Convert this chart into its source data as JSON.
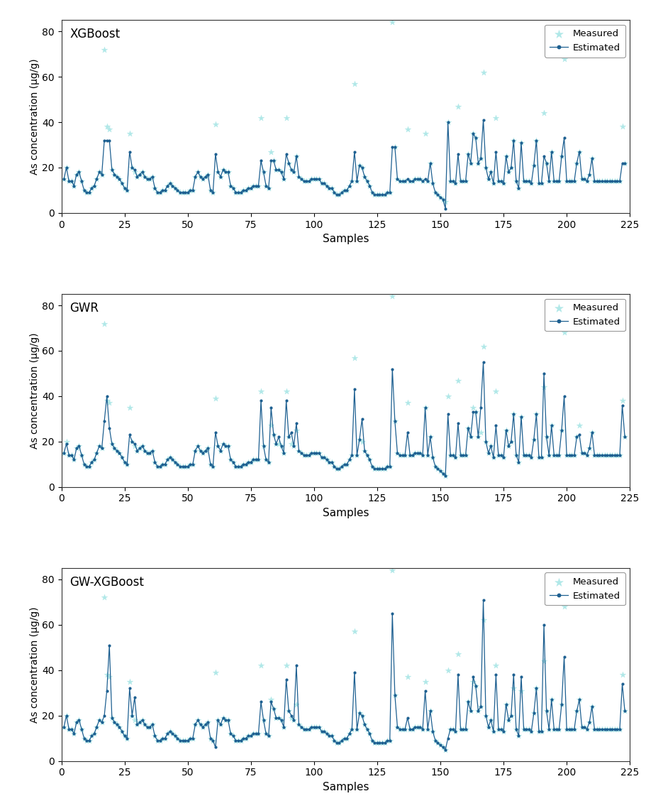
{
  "titles": [
    "XGBoost",
    "GWR",
    "GW-XGBoost"
  ],
  "xlabel": "Samples",
  "ylabel": "As concentration (μg/g)",
  "ylim": [
    0,
    85
  ],
  "xlim": [
    0,
    225
  ],
  "yticks": [
    0,
    20,
    40,
    60,
    80
  ],
  "xticks": [
    0,
    25,
    50,
    75,
    100,
    125,
    150,
    175,
    200,
    225
  ],
  "measured_color": "#b0e8e8",
  "estimated_color": "#1e6091",
  "measured_label": "Measured",
  "estimated_label": "Estimated",
  "measured": [
    15,
    20,
    14,
    14,
    12,
    17,
    18,
    14,
    10,
    9,
    9,
    11,
    12,
    15,
    18,
    17,
    72,
    38,
    37,
    19,
    17,
    16,
    15,
    13,
    11,
    10,
    35,
    20,
    18,
    16,
    17,
    18,
    16,
    15,
    15,
    16,
    11,
    9,
    9,
    10,
    10,
    12,
    13,
    12,
    11,
    10,
    9,
    9,
    9,
    9,
    10,
    10,
    16,
    18,
    16,
    15,
    16,
    17,
    10,
    9,
    39,
    18,
    16,
    19,
    18,
    18,
    12,
    11,
    9,
    9,
    9,
    10,
    10,
    11,
    11,
    12,
    12,
    12,
    42,
    18,
    12,
    11,
    27,
    23,
    19,
    19,
    18,
    15,
    42,
    22,
    19,
    18,
    25,
    16,
    15,
    14,
    14,
    14,
    15,
    15,
    15,
    15,
    13,
    13,
    12,
    11,
    11,
    9,
    8,
    8,
    9,
    10,
    10,
    12,
    14,
    57,
    14,
    21,
    20,
    16,
    14,
    12,
    9,
    8,
    8,
    8,
    8,
    8,
    9,
    9,
    84,
    29,
    15,
    14,
    14,
    14,
    37,
    14,
    14,
    15,
    15,
    15,
    14,
    35,
    14,
    22,
    13,
    9,
    8,
    7,
    6,
    5,
    40,
    14,
    14,
    13,
    47,
    14,
    14,
    14,
    26,
    22,
    35,
    33,
    22,
    24,
    62,
    20,
    15,
    18,
    13,
    42,
    14,
    14,
    13,
    25,
    18,
    20,
    32,
    14,
    11,
    31,
    14,
    14,
    14,
    13,
    21,
    32,
    13,
    13,
    44,
    22,
    14,
    27,
    14,
    14,
    14,
    25,
    68,
    14,
    14,
    14,
    14,
    22,
    27,
    15,
    15,
    14,
    17,
    24,
    14,
    14,
    14,
    14,
    14,
    14,
    14,
    14,
    14,
    14,
    14,
    38,
    22
  ],
  "estimated_xgboost": [
    15,
    20,
    14,
    14,
    12,
    17,
    18,
    14,
    10,
    9,
    9,
    11,
    12,
    15,
    18,
    17,
    32,
    32,
    32,
    19,
    17,
    16,
    15,
    13,
    11,
    10,
    27,
    20,
    19,
    16,
    17,
    18,
    16,
    15,
    15,
    16,
    11,
    9,
    9,
    10,
    10,
    12,
    13,
    12,
    11,
    10,
    9,
    9,
    9,
    9,
    10,
    10,
    16,
    18,
    16,
    15,
    16,
    17,
    10,
    9,
    26,
    18,
    16,
    19,
    18,
    18,
    12,
    11,
    9,
    9,
    9,
    10,
    10,
    11,
    11,
    12,
    12,
    12,
    23,
    18,
    12,
    11,
    23,
    23,
    19,
    19,
    18,
    15,
    26,
    22,
    19,
    18,
    25,
    16,
    15,
    14,
    14,
    14,
    15,
    15,
    15,
    15,
    13,
    13,
    12,
    11,
    11,
    9,
    8,
    8,
    9,
    10,
    10,
    12,
    14,
    27,
    14,
    21,
    20,
    16,
    14,
    12,
    9,
    8,
    8,
    8,
    8,
    8,
    9,
    9,
    29,
    29,
    15,
    14,
    14,
    14,
    15,
    14,
    14,
    15,
    15,
    15,
    14,
    15,
    14,
    22,
    13,
    9,
    8,
    7,
    6,
    2,
    40,
    14,
    14,
    13,
    26,
    14,
    14,
    14,
    26,
    22,
    35,
    33,
    22,
    24,
    41,
    20,
    15,
    18,
    13,
    27,
    14,
    14,
    13,
    25,
    18,
    20,
    32,
    14,
    11,
    31,
    14,
    14,
    14,
    13,
    21,
    32,
    13,
    13,
    25,
    22,
    14,
    27,
    14,
    14,
    14,
    25,
    33,
    14,
    14,
    14,
    14,
    22,
    27,
    15,
    15,
    14,
    17,
    24,
    14,
    14,
    14,
    14,
    14,
    14,
    14,
    14,
    14,
    14,
    14,
    22,
    22
  ],
  "estimated_gwr": [
    15,
    19,
    14,
    14,
    12,
    17,
    18,
    14,
    10,
    9,
    9,
    11,
    12,
    15,
    18,
    17,
    29,
    40,
    26,
    19,
    17,
    16,
    15,
    13,
    11,
    10,
    23,
    20,
    19,
    16,
    17,
    18,
    16,
    15,
    15,
    16,
    11,
    9,
    9,
    10,
    10,
    12,
    13,
    12,
    11,
    10,
    9,
    9,
    9,
    9,
    10,
    10,
    16,
    18,
    16,
    15,
    16,
    17,
    10,
    9,
    24,
    18,
    16,
    19,
    18,
    18,
    12,
    11,
    9,
    9,
    9,
    10,
    10,
    11,
    11,
    12,
    12,
    12,
    38,
    18,
    12,
    11,
    35,
    23,
    19,
    22,
    18,
    15,
    38,
    22,
    24,
    18,
    28,
    16,
    15,
    14,
    14,
    14,
    15,
    15,
    15,
    15,
    13,
    13,
    12,
    11,
    11,
    9,
    8,
    8,
    9,
    10,
    10,
    12,
    14,
    43,
    14,
    21,
    30,
    16,
    14,
    12,
    9,
    8,
    8,
    8,
    8,
    8,
    9,
    9,
    52,
    29,
    15,
    14,
    14,
    14,
    24,
    14,
    14,
    15,
    15,
    15,
    14,
    35,
    14,
    22,
    13,
    9,
    8,
    7,
    6,
    5,
    32,
    14,
    14,
    13,
    28,
    14,
    14,
    14,
    26,
    22,
    33,
    33,
    22,
    35,
    55,
    20,
    15,
    18,
    13,
    27,
    14,
    14,
    13,
    25,
    18,
    20,
    32,
    14,
    11,
    31,
    14,
    14,
    14,
    13,
    21,
    32,
    13,
    13,
    50,
    22,
    14,
    27,
    14,
    14,
    14,
    25,
    40,
    14,
    14,
    14,
    14,
    22,
    23,
    15,
    15,
    14,
    17,
    24,
    14,
    14,
    14,
    14,
    14,
    14,
    14,
    14,
    14,
    14,
    14,
    36,
    22
  ],
  "estimated_gwxgb": [
    15,
    20,
    14,
    14,
    12,
    17,
    18,
    14,
    10,
    9,
    9,
    11,
    12,
    15,
    18,
    17,
    20,
    31,
    51,
    19,
    17,
    16,
    15,
    13,
    11,
    10,
    32,
    20,
    28,
    16,
    17,
    18,
    16,
    15,
    15,
    16,
    11,
    9,
    9,
    10,
    10,
    12,
    13,
    12,
    11,
    10,
    9,
    9,
    9,
    9,
    10,
    10,
    16,
    18,
    16,
    15,
    16,
    17,
    10,
    9,
    6,
    18,
    16,
    19,
    18,
    18,
    12,
    11,
    9,
    9,
    9,
    10,
    10,
    11,
    11,
    12,
    12,
    12,
    26,
    18,
    12,
    11,
    26,
    23,
    19,
    19,
    18,
    15,
    36,
    22,
    20,
    18,
    42,
    16,
    15,
    14,
    14,
    14,
    15,
    15,
    15,
    15,
    13,
    13,
    12,
    11,
    11,
    9,
    8,
    8,
    9,
    10,
    10,
    12,
    14,
    39,
    14,
    21,
    20,
    16,
    14,
    12,
    9,
    8,
    8,
    8,
    8,
    8,
    9,
    9,
    65,
    29,
    15,
    14,
    14,
    14,
    19,
    14,
    14,
    15,
    15,
    15,
    14,
    31,
    14,
    22,
    13,
    9,
    8,
    7,
    6,
    5,
    10,
    14,
    14,
    13,
    38,
    14,
    14,
    14,
    26,
    22,
    37,
    33,
    22,
    24,
    71,
    20,
    15,
    18,
    13,
    38,
    14,
    14,
    13,
    25,
    18,
    20,
    38,
    14,
    11,
    37,
    14,
    14,
    14,
    13,
    21,
    32,
    13,
    13,
    60,
    22,
    14,
    27,
    14,
    14,
    14,
    25,
    46,
    14,
    14,
    14,
    14,
    22,
    27,
    15,
    15,
    14,
    17,
    24,
    14,
    14,
    14,
    14,
    14,
    14,
    14,
    14,
    14,
    14,
    14,
    34,
    22
  ]
}
